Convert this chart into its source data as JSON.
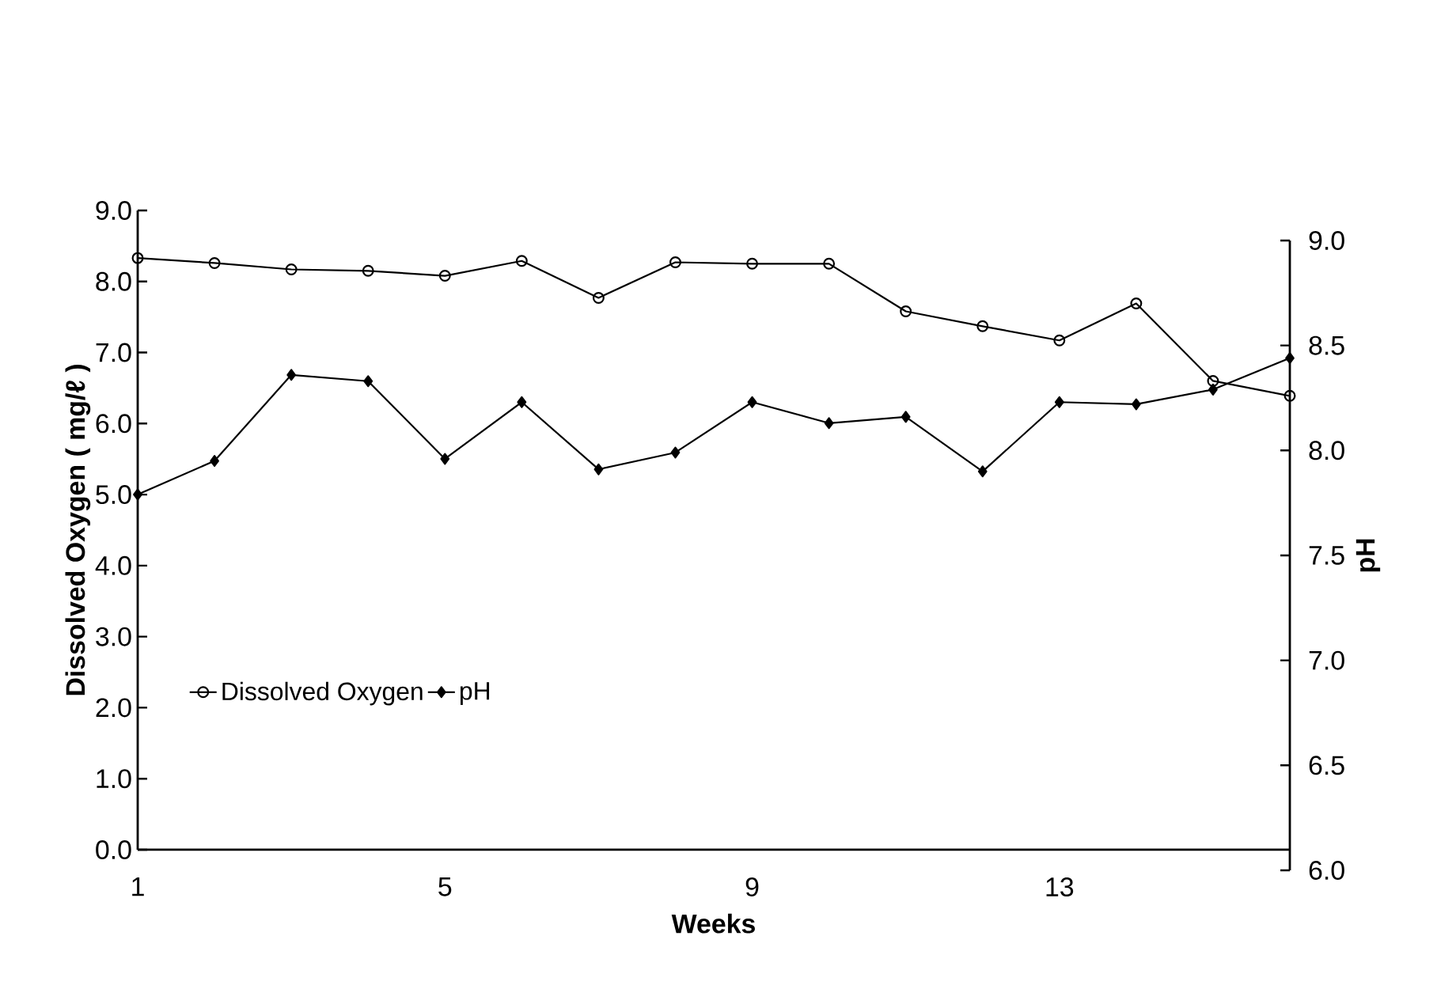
{
  "chart_data": {
    "type": "line",
    "x": [
      1,
      2,
      3,
      4,
      5,
      6,
      7,
      8,
      9,
      10,
      11,
      12,
      13,
      14,
      15,
      16
    ],
    "xlabel": "Weeks",
    "ylabel": "Dissolved Oxygen ( mg/ℓ )",
    "y2label": "pH",
    "series": [
      {
        "name": "Dissolved Oxygen",
        "color": "#000000",
        "marker": "circle",
        "values": [
          8.33,
          8.26,
          8.17,
          8.15,
          8.08,
          8.29,
          7.77,
          8.27,
          8.25,
          8.25,
          7.58,
          7.37,
          7.17,
          7.69,
          6.6,
          6.39
        ]
      },
      {
        "name": "pH",
        "color": "#000000",
        "marker": "diamond",
        "axis": "y2",
        "values": [
          7.79,
          7.95,
          8.36,
          8.33,
          7.96,
          8.23,
          7.91,
          7.99,
          8.23,
          8.13,
          8.16,
          7.9,
          8.23,
          8.22,
          8.29,
          8.44
        ]
      }
    ],
    "xlim": [
      1,
      16
    ],
    "xticks": [
      1,
      5,
      9,
      13
    ],
    "ylim": [
      0,
      9
    ],
    "yticks": [
      {
        "value": 0,
        "label": "0.0"
      },
      {
        "value": 1,
        "label": "1.0"
      },
      {
        "value": 2,
        "label": "2.0"
      },
      {
        "value": 3,
        "label": "3.0"
      },
      {
        "value": 4,
        "label": "4.0"
      },
      {
        "value": 5,
        "label": "5.0"
      },
      {
        "value": 6,
        "label": "6.0"
      },
      {
        "value": 7,
        "label": "7.0"
      },
      {
        "value": 8,
        "label": "8.0"
      },
      {
        "value": 9,
        "label": "9.0"
      }
    ],
    "y2lim": [
      6,
      9
    ],
    "y2ticks": [
      {
        "value": 6,
        "label": "6.0"
      },
      {
        "value": 6.5,
        "label": "6.5"
      },
      {
        "value": 7,
        "label": "7.0"
      },
      {
        "value": 7.5,
        "label": "7.5"
      },
      {
        "value": 8,
        "label": "8.0"
      },
      {
        "value": 8.5,
        "label": "8.5"
      },
      {
        "value": 9,
        "label": "9.0"
      }
    ],
    "grid": false,
    "legend": "bottom left",
    "line_style": "solid"
  }
}
